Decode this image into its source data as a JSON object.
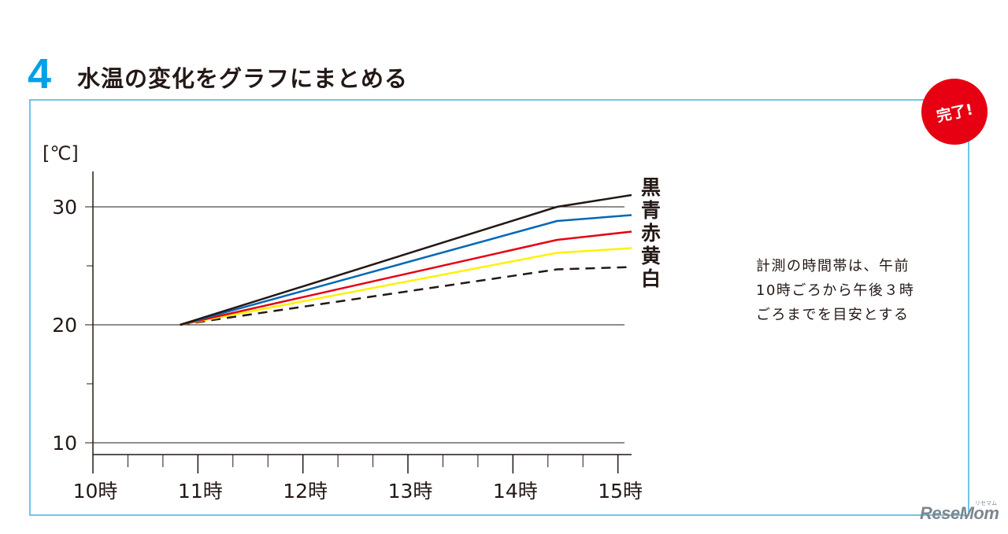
{
  "header": {
    "step_number": "4",
    "title": "水温の変化をグラフにまとめる"
  },
  "badge": {
    "label": "完了!"
  },
  "note": {
    "lines": [
      "計測の時間帯は、午前",
      "10時ごろから午後３時",
      "ごろまでを目安とする"
    ]
  },
  "watermark": {
    "brand": "ReseMom",
    "small": "リセマム"
  },
  "colors": {
    "accent": "#00a0e9",
    "frame": "#6ec6e8",
    "badge": "#e60012",
    "text": "#231815"
  },
  "chart_data": {
    "type": "line",
    "title": "",
    "unit_label": "[℃]",
    "xlabel": "",
    "ylabel": "[℃]",
    "x_ticks": [
      10,
      11,
      12,
      13,
      14,
      15
    ],
    "x_tick_labels": [
      "10時",
      "11時",
      "12時",
      "13時",
      "14時",
      "15時"
    ],
    "xlim": [
      10,
      15.13
    ],
    "y_ticks": [
      10,
      20,
      30
    ],
    "y_tick_labels": [
      "10",
      "20",
      "30"
    ],
    "y_minor_ticks": [
      15,
      25
    ],
    "ylim": [
      9,
      33
    ],
    "grid": "horizontal at 10, 20, 30",
    "legend": "right end of lines",
    "series": [
      {
        "name": "黒",
        "color": "#231815",
        "dash": false,
        "x": [
          10.83,
          14.42,
          15.13
        ],
        "y": [
          20,
          30,
          31
        ]
      },
      {
        "name": "青",
        "color": "#0068b7",
        "dash": false,
        "x": [
          10.83,
          14.42,
          15.13
        ],
        "y": [
          20,
          28.8,
          29.3
        ]
      },
      {
        "name": "赤",
        "color": "#e60012",
        "dash": false,
        "x": [
          10.83,
          14.42,
          15.13
        ],
        "y": [
          20,
          27.2,
          27.9
        ]
      },
      {
        "name": "黄",
        "color": "#fff100",
        "dash": false,
        "x": [
          10.83,
          14.42,
          15.13
        ],
        "y": [
          20,
          26.1,
          26.5
        ]
      },
      {
        "name": "白",
        "color": "#231815",
        "dash": true,
        "x": [
          10.83,
          14.42,
          15.13
        ],
        "y": [
          20,
          24.7,
          24.9
        ]
      }
    ]
  }
}
